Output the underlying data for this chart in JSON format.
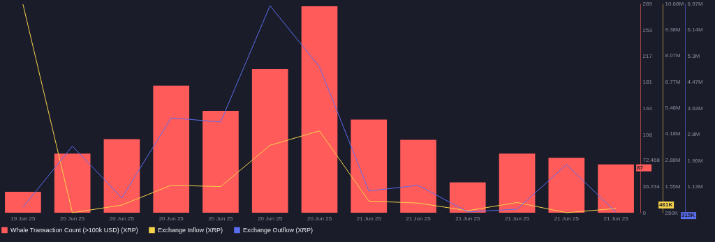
{
  "chart_data": {
    "type": "bar",
    "categories": [
      "19 Jun 25",
      "20 Jun 25",
      "20 Jun 25",
      "20 Jun 25",
      "20 Jun 25",
      "20 Jun 25",
      "20 Jun 25",
      "21 Jun 25",
      "21 Jun 25",
      "21 Jun 25",
      "21 Jun 25",
      "21 Jun 25",
      "21 Jun 25"
    ],
    "series": [
      {
        "name": "Whale Transaction Count (>100k USD) (XRP)",
        "color": "#ff5b5b",
        "values": [
          29,
          82,
          102,
          176,
          141,
          199,
          286,
          129,
          101,
          42,
          82,
          76,
          67
        ]
      },
      {
        "name": "Exchange Inflow (XRP)",
        "type": "line",
        "axis": "y2",
        "color": "#f5d34a",
        "values": [
          10640000,
          250000,
          630000,
          1620000,
          1550000,
          3610000,
          4330000,
          830000,
          730000,
          350000,
          760000,
          250000,
          461000
        ]
      },
      {
        "name": "Exchange Outflow (XRP)",
        "type": "line",
        "axis": "y3",
        "color": "#5a6ef0",
        "values": [
          470000,
          2420000,
          770000,
          3320000,
          3190000,
          6900000,
          4950000,
          990000,
          1170000,
          320000,
          410000,
          1830000,
          315000
        ]
      }
    ],
    "ylim": [
      0,
      289.87
    ],
    "yticks": [
      0,
      {
        "value": 36.234,
        "label": "36.234"
      },
      {
        "value": 72.468,
        "label": "72.468"
      },
      108,
      144,
      {
        "value": 181.2,
        "label": "181"
      },
      {
        "value": 217.4,
        "label": "217"
      },
      253,
      289
    ],
    "y2lim": [
      250000,
      10680000
    ],
    "y2ticks": [
      {
        "value": 250000,
        "label": "250K"
      },
      {
        "value": 1554000,
        "label": "1.55M"
      },
      {
        "value": 2880000,
        "label": "2.88M"
      },
      {
        "value": 4180000,
        "label": "4.18M"
      },
      {
        "value": 5480000,
        "label": "5.48M"
      },
      {
        "value": 6769000,
        "label": "6.77M"
      },
      {
        "value": 8073000,
        "label": "8.07M"
      },
      {
        "value": 9376000,
        "label": "9.38M"
      },
      {
        "value": 10680000,
        "label": "10.68M"
      }
    ],
    "y3lim": [
      296000,
      6970000
    ],
    "y3ticks": [
      {
        "value": 1130000,
        "label": "1.13M"
      },
      {
        "value": 1964000,
        "label": "1.96M"
      },
      {
        "value": 2798000,
        "label": "2.8M"
      },
      {
        "value": 3632000,
        "label": "3.63M"
      },
      {
        "value": 4466000,
        "label": "4.47M"
      },
      {
        "value": 5300000,
        "label": "5.3M"
      },
      {
        "value": 6140000,
        "label": "6.14M"
      },
      {
        "value": 6970000,
        "label": "6.97M"
      }
    ],
    "annotations": [
      "87",
      "461K",
      "315K"
    ],
    "grid": false,
    "legend": "bottom"
  }
}
